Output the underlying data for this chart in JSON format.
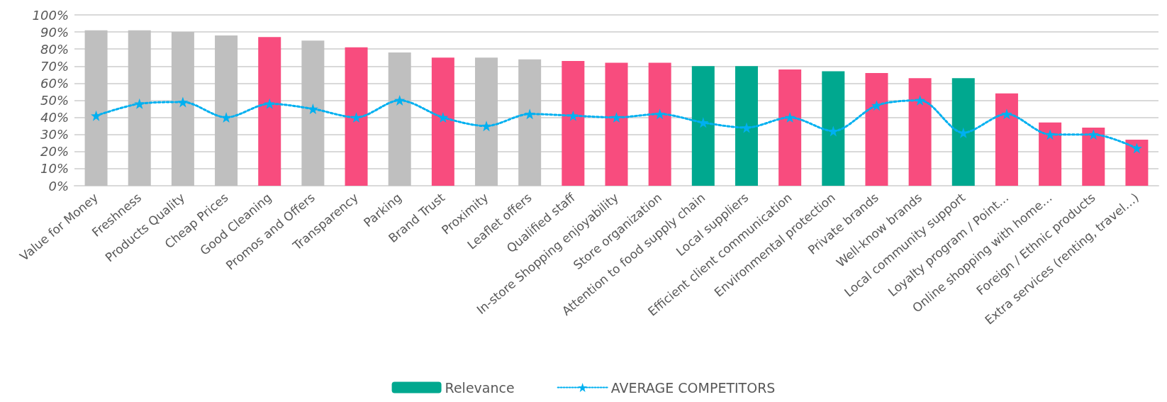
{
  "chart_data": {
    "type": "bar",
    "categories": [
      "Value for Money",
      "Freshness",
      "Products Quality",
      "Cheap Prices",
      "Good Cleaning",
      "Promos and Offers",
      "Transparency",
      "Parking",
      "Brand Trust",
      "Proximity",
      "Leaflet offers",
      "Qualified staff",
      "In-store Shopping enjoyability",
      "Store organization",
      "Attention to food supply chain",
      "Local suppliers",
      "Efficient client communication",
      "Environmental protection",
      "Private brands",
      "Well-know brands",
      "Local community support",
      "Loyalty program / Point…",
      "Online shopping with home…",
      "Foreign / Ethnic products",
      "Extra services (renting, travel…)"
    ],
    "series": [
      {
        "name": "Relevance",
        "color": "#00a88f",
        "values": [
          91,
          91,
          90,
          88,
          87,
          85,
          81,
          78,
          75,
          75,
          74,
          73,
          72,
          72,
          70,
          70,
          68,
          67,
          66,
          63,
          63,
          54,
          37,
          34,
          27
        ],
        "colors": [
          "#bfbfbf",
          "#bfbfbf",
          "#bfbfbf",
          "#bfbfbf",
          "#f84c7e",
          "#bfbfbf",
          "#f84c7e",
          "#bfbfbf",
          "#f84c7e",
          "#bfbfbf",
          "#bfbfbf",
          "#f84c7e",
          "#f84c7e",
          "#f84c7e",
          "#00a88f",
          "#00a88f",
          "#f84c7e",
          "#00a88f",
          "#f84c7e",
          "#f84c7e",
          "#00a88f",
          "#f84c7e",
          "#f84c7e",
          "#f84c7e",
          "#f84c7e"
        ]
      },
      {
        "name": "AVERAGE COMPETITORS",
        "type": "line",
        "color": "#00b0f0",
        "marker": "star",
        "line_style": "dotted",
        "values": [
          41,
          48,
          49,
          40,
          48,
          45,
          40,
          50,
          40,
          35,
          42,
          41,
          40,
          42,
          37,
          34,
          40,
          32,
          47,
          50,
          31,
          42,
          30,
          30,
          22
        ]
      }
    ],
    "ylim": [
      0,
      100
    ],
    "yticks": [
      {
        "value": 0,
        "label": "0%"
      },
      {
        "value": 10,
        "label": "10%"
      },
      {
        "value": 20,
        "label": "20%"
      },
      {
        "value": 30,
        "label": "30%"
      },
      {
        "value": 40,
        "label": "40%"
      },
      {
        "value": 50,
        "label": "50%"
      },
      {
        "value": 60,
        "label": "60%"
      },
      {
        "value": 70,
        "label": "70%"
      },
      {
        "value": 80,
        "label": "80%"
      },
      {
        "value": 90,
        "label": "90%"
      },
      {
        "value": 100,
        "label": "100%"
      }
    ],
    "grid": "y",
    "legend": "bottom"
  }
}
